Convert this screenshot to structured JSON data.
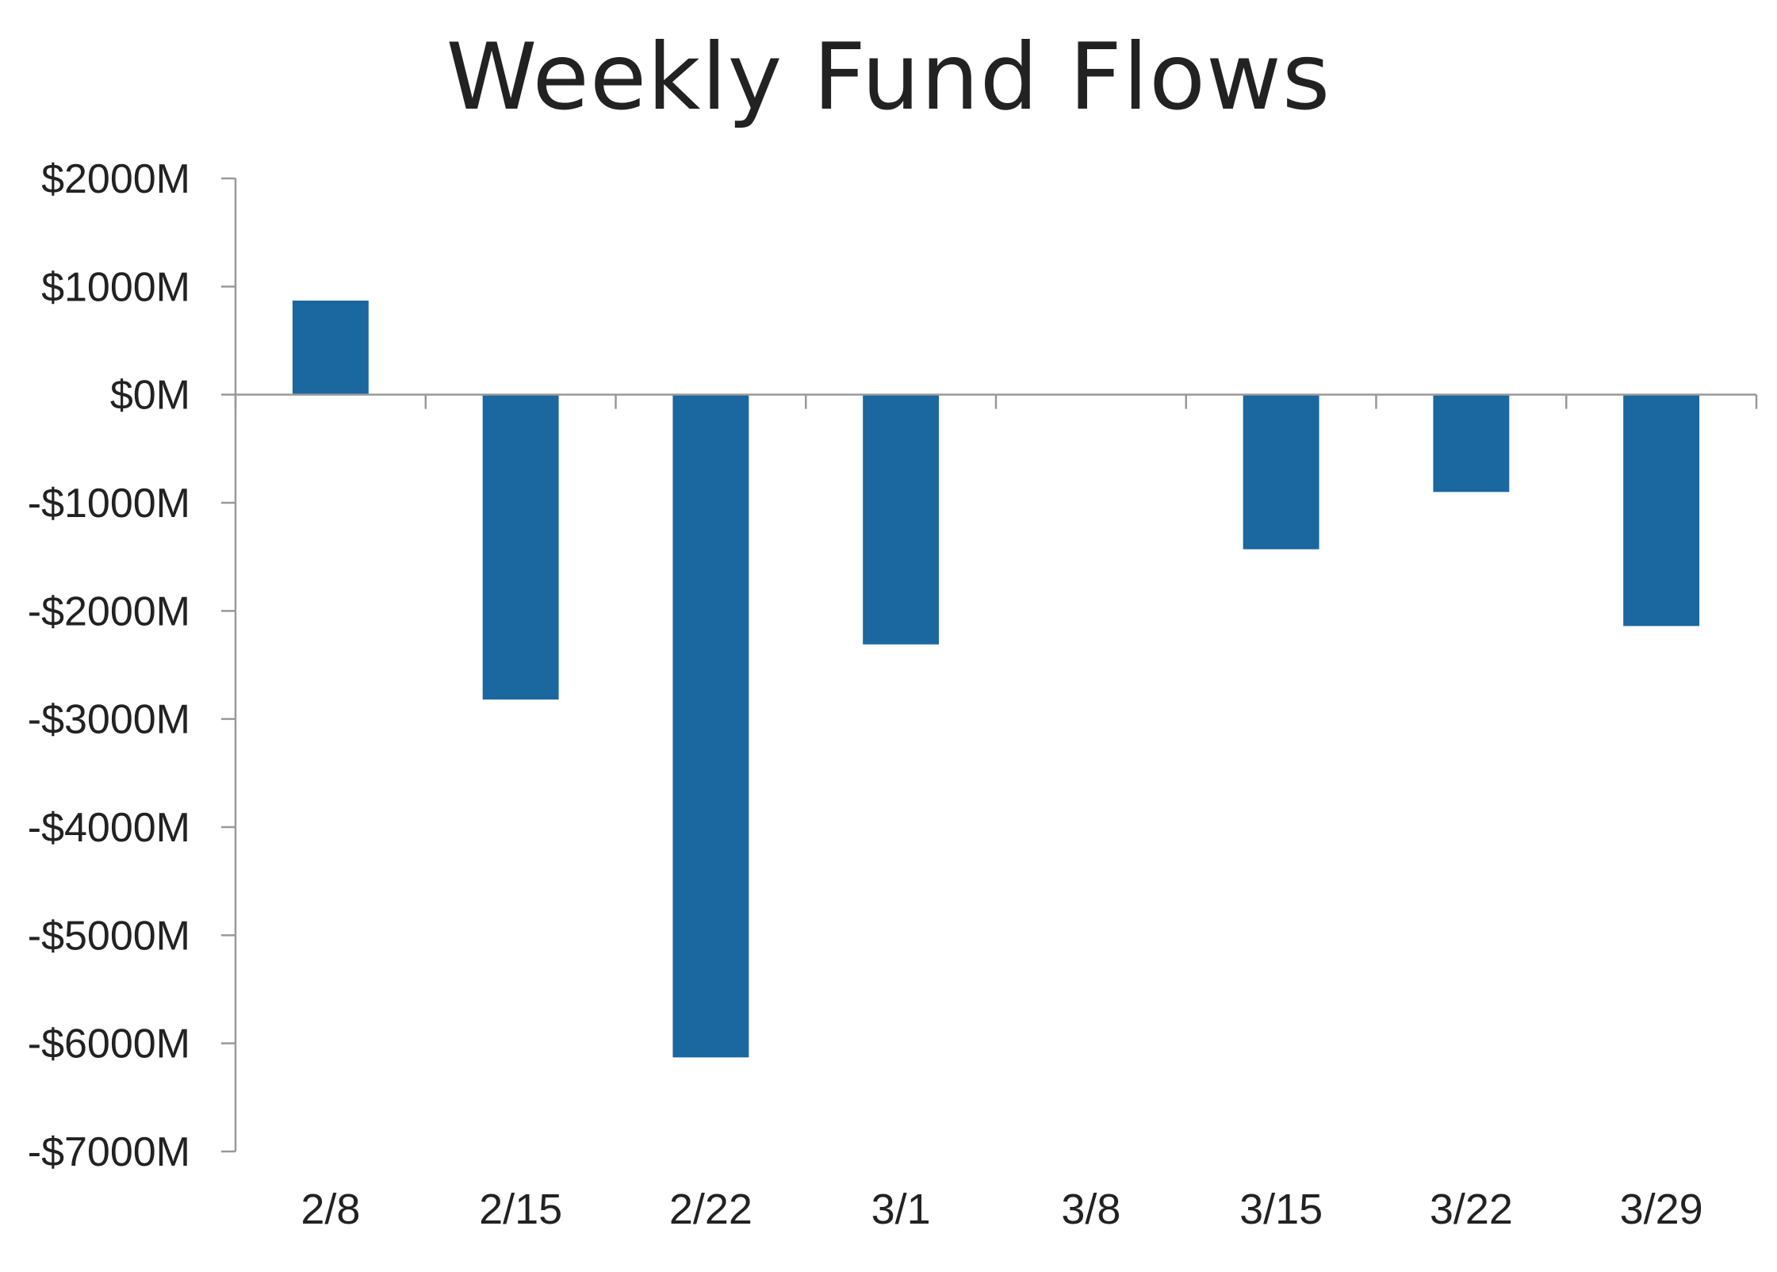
{
  "chart_data": {
    "type": "bar",
    "title": "Weekly Fund Flows",
    "categories": [
      "2/8",
      "2/15",
      "2/22",
      "3/1",
      "3/8",
      "3/15",
      "3/22",
      "3/29"
    ],
    "values": [
      870,
      -2820,
      -6130,
      -2310,
      5,
      -1430,
      -900,
      -2140
    ],
    "ylim": [
      -7000,
      2000
    ],
    "yticks": [
      2000,
      1000,
      0,
      -1000,
      -2000,
      -3000,
      -4000,
      -5000,
      -6000,
      -7000
    ],
    "ytick_labels": [
      "$2000M",
      "$1000M",
      "$0M",
      "-$1000M",
      "-$2000M",
      "-$3000M",
      "-$4000M",
      "-$5000M",
      "-$6000M",
      "-$7000M"
    ],
    "grid": false,
    "colors": {
      "bar": "#1b67a0",
      "axis": "#999999",
      "text": "#222222"
    }
  }
}
